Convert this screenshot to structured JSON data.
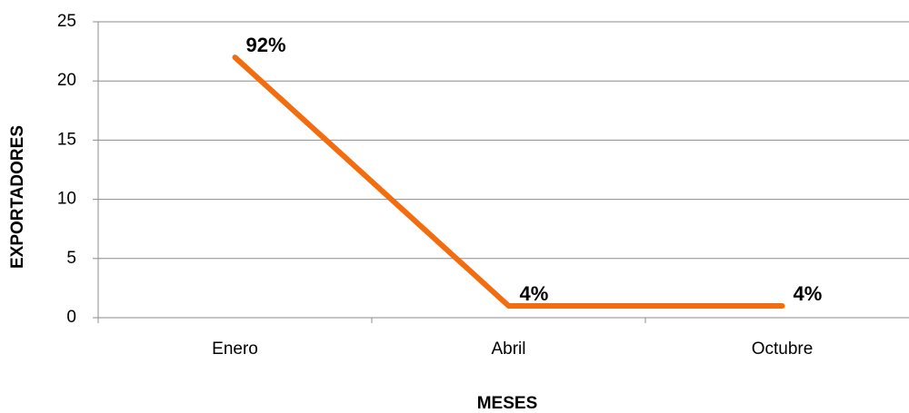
{
  "chart_data": {
    "type": "line",
    "x_label": "MESES",
    "y_label": "EXPORTADORES",
    "categories": [
      "Enero",
      "Abril",
      "Octubre"
    ],
    "series": [
      {
        "name": "Exportadores",
        "color": "#f26d0f",
        "values": [
          22,
          1,
          1
        ]
      }
    ],
    "point_labels": [
      "92%",
      "4%",
      "4%"
    ],
    "ylim": [
      0,
      25
    ],
    "yticks": [
      0,
      5,
      10,
      15,
      20,
      25
    ],
    "grid": true,
    "legend": false
  }
}
